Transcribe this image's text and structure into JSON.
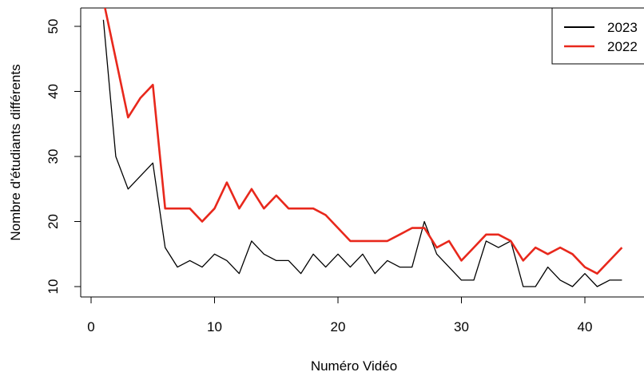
{
  "chart_data": {
    "type": "line",
    "title": "",
    "xlabel": "Numéro Vidéo",
    "ylabel": "Nombre d'étudiants différents",
    "xlim": [
      0,
      43
    ],
    "ylim": [
      9,
      52
    ],
    "xticks": [
      0,
      10,
      20,
      30,
      40
    ],
    "yticks": [
      10,
      20,
      30,
      40,
      50
    ],
    "grid": false,
    "legend": {
      "position": "top-right",
      "entries": [
        "2023",
        "2022"
      ]
    },
    "series": [
      {
        "name": "2023",
        "color": "#000000",
        "x": [
          1,
          2,
          3,
          4,
          5,
          6,
          7,
          8,
          9,
          10,
          11,
          12,
          13,
          14,
          15,
          16,
          17,
          18,
          19,
          20,
          21,
          22,
          23,
          24,
          25,
          26,
          27,
          28,
          29,
          30,
          31,
          32,
          33,
          34,
          35,
          36,
          37,
          38,
          39,
          40,
          41,
          42,
          43
        ],
        "values": [
          51,
          30,
          25,
          27,
          29,
          16,
          13,
          14,
          13,
          15,
          14,
          12,
          17,
          15,
          14,
          14,
          12,
          15,
          13,
          15,
          13,
          15,
          12,
          14,
          13,
          13,
          20,
          15,
          13,
          11,
          11,
          17,
          16,
          17,
          10,
          10,
          13,
          11,
          10,
          12,
          10,
          11,
          11
        ]
      },
      {
        "name": "2022",
        "color": "#e8281c",
        "x": [
          1,
          2,
          3,
          4,
          5,
          6,
          7,
          8,
          9,
          10,
          11,
          12,
          13,
          14,
          15,
          16,
          17,
          18,
          19,
          20,
          21,
          22,
          23,
          24,
          25,
          26,
          27,
          28,
          29,
          30,
          31,
          32,
          33,
          34,
          35,
          36,
          37,
          38,
          39,
          40,
          41,
          42,
          43
        ],
        "values": [
          54,
          45,
          36,
          39,
          41,
          22,
          22,
          22,
          20,
          22,
          26,
          22,
          25,
          22,
          24,
          22,
          22,
          22,
          21,
          19,
          17,
          17,
          17,
          17,
          18,
          19,
          19,
          16,
          17,
          14,
          16,
          18,
          18,
          17,
          14,
          16,
          15,
          16,
          15,
          13,
          12,
          14,
          16
        ]
      }
    ]
  }
}
